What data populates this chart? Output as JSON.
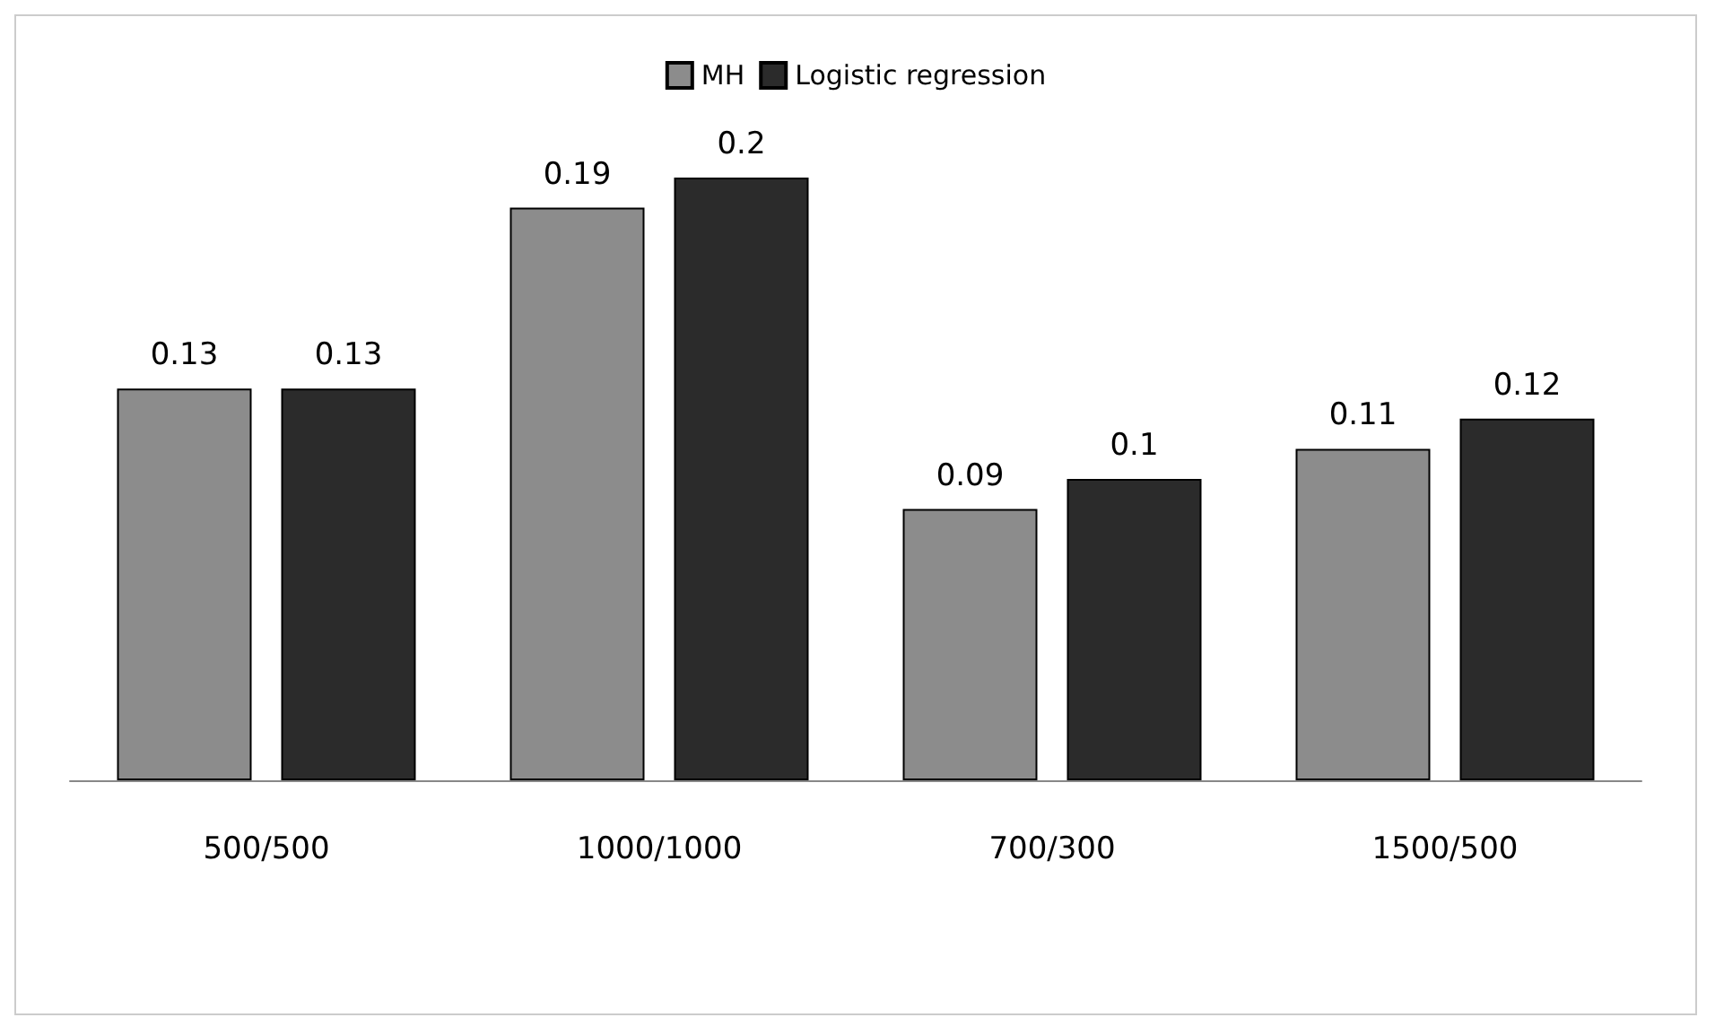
{
  "chart_data": {
    "type": "bar",
    "categories": [
      "500/500",
      "1000/1000",
      "700/300",
      "1500/500"
    ],
    "series": [
      {
        "name": "MH",
        "color": "#8c8c8c",
        "values": [
          0.13,
          0.19,
          0.09,
          0.11
        ]
      },
      {
        "name": "Logistic regression",
        "color": "#2b2b2b",
        "values": [
          0.13,
          0.2,
          0.1,
          0.12
        ]
      }
    ],
    "data_labels": true,
    "legend": "top",
    "tick_labels": "x"
  }
}
